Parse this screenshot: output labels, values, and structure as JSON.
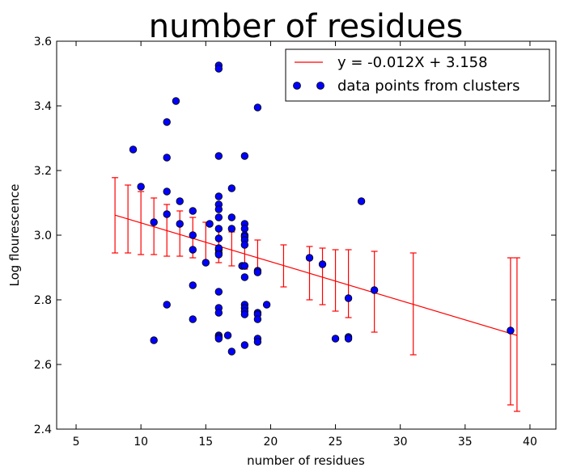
{
  "chart_data": {
    "type": "scatter",
    "title": "number of residues",
    "xlabel": "number of residues",
    "ylabel": "Log flourescence",
    "xlim": [
      3.5,
      42
    ],
    "ylim": [
      2.4,
      3.6
    ],
    "xticks": [
      5,
      10,
      15,
      20,
      25,
      30,
      35,
      40
    ],
    "yticks": [
      2.4,
      2.6,
      2.8,
      3.0,
      3.2,
      3.4,
      3.6
    ],
    "legend_position": "top-right",
    "fit_line": {
      "name": "y = -0.012X + 3.158",
      "slope": -0.012,
      "intercept": 3.158,
      "x_range": [
        8,
        39
      ],
      "color": "#ff0000"
    },
    "error_bars": [
      {
        "x": 8,
        "y": 3.062,
        "low": 2.945,
        "high": 3.178
      },
      {
        "x": 9,
        "y": 3.05,
        "low": 2.945,
        "high": 3.155
      },
      {
        "x": 10,
        "y": 3.038,
        "low": 2.94,
        "high": 3.135
      },
      {
        "x": 11,
        "y": 3.026,
        "low": 2.94,
        "high": 3.115
      },
      {
        "x": 12,
        "y": 3.014,
        "low": 2.935,
        "high": 3.095
      },
      {
        "x": 13,
        "y": 3.002,
        "low": 2.935,
        "high": 3.075
      },
      {
        "x": 14,
        "y": 2.99,
        "low": 2.93,
        "high": 3.055
      },
      {
        "x": 15,
        "y": 2.978,
        "low": 2.92,
        "high": 3.04
      },
      {
        "x": 16,
        "y": 2.966,
        "low": 2.915,
        "high": 3.025
      },
      {
        "x": 17,
        "y": 2.954,
        "low": 2.905,
        "high": 3.01
      },
      {
        "x": 18,
        "y": 2.942,
        "low": 2.895,
        "high": 2.995
      },
      {
        "x": 19,
        "y": 2.93,
        "low": 2.88,
        "high": 2.985
      },
      {
        "x": 21,
        "y": 2.906,
        "low": 2.84,
        "high": 2.97
      },
      {
        "x": 23,
        "y": 2.882,
        "low": 2.8,
        "high": 2.965
      },
      {
        "x": 24,
        "y": 2.87,
        "low": 2.785,
        "high": 2.96
      },
      {
        "x": 25,
        "y": 2.858,
        "low": 2.765,
        "high": 2.955
      },
      {
        "x": 26,
        "y": 2.846,
        "low": 2.745,
        "high": 2.955
      },
      {
        "x": 28,
        "y": 2.822,
        "low": 2.7,
        "high": 2.95
      },
      {
        "x": 31,
        "y": 2.786,
        "low": 2.63,
        "high": 2.945
      },
      {
        "x": 38.5,
        "y": 2.7,
        "low": 2.475,
        "high": 2.93
      },
      {
        "x": 39,
        "y": 2.694,
        "low": 2.455,
        "high": 2.93
      }
    ],
    "series": [
      {
        "name": "data points from clusters",
        "color": "#0000ff",
        "x": [
          9.4,
          10,
          11,
          11,
          12,
          12,
          12,
          12,
          12,
          12.7,
          13,
          13,
          14,
          14,
          14,
          14,
          14,
          15,
          15.3,
          16,
          16,
          16,
          16,
          16,
          16,
          16,
          16,
          16,
          16,
          16,
          16,
          16,
          16,
          16,
          16,
          16,
          16,
          16,
          16.7,
          17,
          17,
          17,
          17,
          17.8,
          18,
          18,
          18,
          18,
          18,
          18,
          18,
          18,
          18,
          18,
          18,
          18,
          18,
          18,
          19,
          19,
          19,
          19,
          19,
          19,
          19,
          19,
          19.7,
          23,
          24,
          25,
          26,
          26,
          26,
          27,
          28,
          38.5
        ],
        "y": [
          3.265,
          3.15,
          3.04,
          2.675,
          3.35,
          3.24,
          3.135,
          3.065,
          2.785,
          3.415,
          3.105,
          3.035,
          3.075,
          3.0,
          2.955,
          2.845,
          2.74,
          2.915,
          3.035,
          3.525,
          3.515,
          3.245,
          3.12,
          3.095,
          3.08,
          3.055,
          3.02,
          2.99,
          2.955,
          2.945,
          2.825,
          2.775,
          2.76,
          2.69,
          2.685,
          2.68,
          2.96,
          2.94,
          2.69,
          3.145,
          3.055,
          3.02,
          2.64,
          2.905,
          3.245,
          3.035,
          3.02,
          3.0,
          2.995,
          2.985,
          2.97,
          2.905,
          2.87,
          2.785,
          2.775,
          2.765,
          2.755,
          2.66,
          3.395,
          2.89,
          2.885,
          2.76,
          2.755,
          2.74,
          2.68,
          2.67,
          2.785,
          2.93,
          2.91,
          2.68,
          2.805,
          2.685,
          2.68,
          3.105,
          2.83,
          2.705
        ]
      }
    ]
  }
}
